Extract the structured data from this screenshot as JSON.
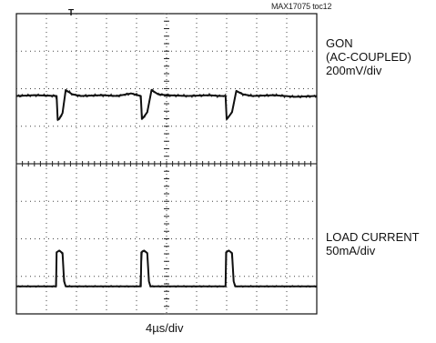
{
  "chart_data": {
    "type": "line",
    "title": "",
    "reference": "MAX17075 toc12",
    "divisions": {
      "x": 10,
      "y": 8
    },
    "xlabel": "4µs/div",
    "grid": true,
    "series": [
      {
        "name": "GON",
        "label_lines": [
          "GON",
          "(AC-COUPLED)",
          "200mV/div"
        ],
        "color": "#111111",
        "x": [
          0,
          1.8,
          3.75,
          3.85,
          4.0,
          4.3,
          4.6,
          5.2,
          6.0,
          8.0,
          9.4,
          10.7,
          11.6,
          11.7,
          11.85,
          12.2,
          12.6,
          13.2,
          14.0,
          16.0,
          18.0,
          18.9,
          19.5,
          19.6,
          19.75,
          20.1,
          20.5,
          21.1,
          22.0,
          24.0,
          26.0,
          28.0
        ],
        "values": [
          0.0,
          0.05,
          0.0,
          -1.4,
          -1.35,
          -1.0,
          0.35,
          0.1,
          0.0,
          0.05,
          0.0,
          0.15,
          0.0,
          -1.35,
          -1.25,
          -0.95,
          0.35,
          0.1,
          0.05,
          0.0,
          0.05,
          0.0,
          0.0,
          -1.35,
          -1.25,
          -0.95,
          0.3,
          0.1,
          0.0,
          0.05,
          -0.05,
          0.0
        ],
        "unit_per_div": "200mV/div"
      },
      {
        "name": "LOAD CURRENT",
        "label_lines": [
          "LOAD CURRENT",
          "50mA/div"
        ],
        "color": "#111111",
        "x": [
          0,
          3.7,
          3.75,
          4.0,
          4.3,
          4.45,
          4.6,
          8.0,
          11.6,
          11.65,
          11.9,
          12.2,
          12.35,
          12.5,
          16.0,
          19.5,
          19.55,
          19.8,
          20.1,
          20.25,
          20.4,
          24.0,
          28.0
        ],
        "values": [
          0.0,
          0.0,
          2.0,
          2.1,
          1.95,
          0.3,
          0.0,
          0.0,
          0.0,
          2.0,
          2.1,
          1.95,
          0.3,
          0.0,
          0.0,
          0.0,
          2.0,
          2.1,
          1.95,
          0.3,
          0.0,
          0.0,
          0.0
        ],
        "unit_per_div": "50mA/div"
      }
    ]
  }
}
